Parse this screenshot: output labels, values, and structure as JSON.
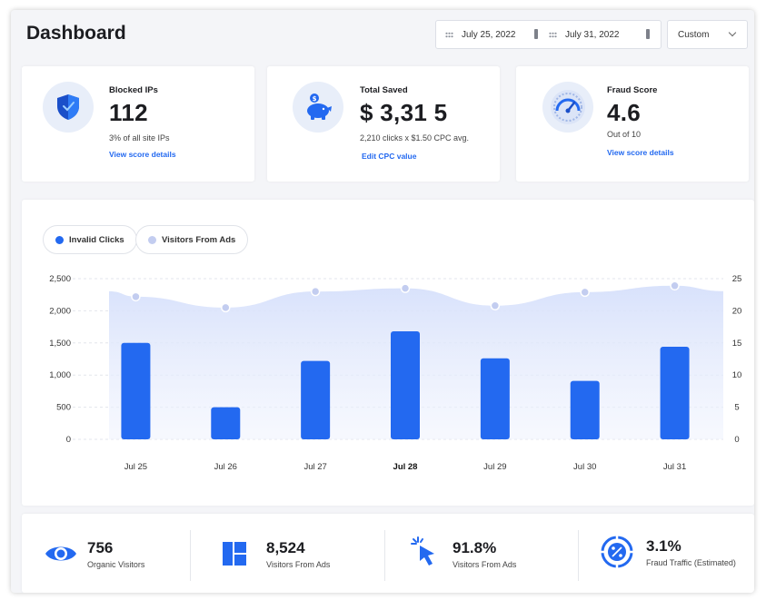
{
  "header": {
    "title": "Dashboard",
    "date_start": "July 25, 2022",
    "date_end": "July 31, 2022",
    "range_select": "Custom"
  },
  "stats": [
    {
      "label": "Blocked IPs",
      "value": "112",
      "sub": "3% of all site IPs",
      "link": "View score details",
      "icon": "shield-icon"
    },
    {
      "label": "Total Saved",
      "value": "$ 3,31 5",
      "sub": "2,210 clicks x $1.50 CPC avg.",
      "link": "Edit CPC value",
      "icon": "piggy-bank-icon"
    },
    {
      "label": "Fraud Score",
      "value": "4.6",
      "sub": "Out of 10",
      "link": "View score details",
      "icon": "gauge-icon"
    }
  ],
  "legend": [
    {
      "label": "Invalid Clicks",
      "color": "#2369f0"
    },
    {
      "label": "Visitors From Ads",
      "color": "#c3cdf0"
    }
  ],
  "chart_data": {
    "type": "bar",
    "categories": [
      "Jul 25",
      "Jul 26",
      "Jul 27",
      "Jul 28",
      "Jul 29",
      "Jul 30",
      "Jul 31"
    ],
    "highlighted_category": "Jul 28",
    "series": [
      {
        "name": "Invalid Clicks",
        "type": "bar",
        "axis": "left",
        "color": "#2369f0",
        "values": [
          1500,
          500,
          1220,
          1680,
          1260,
          910,
          1440
        ]
      },
      {
        "name": "Visitors From Ads",
        "type": "area",
        "axis": "right",
        "color": "#c3cdf0",
        "values": [
          22.2,
          20.5,
          23.0,
          23.5,
          20.8,
          22.9,
          23.9
        ]
      }
    ],
    "y_left": {
      "ticks": [
        "2,500",
        "2,000",
        "1,500",
        "1,000",
        "500",
        "0"
      ],
      "ylim": [
        0,
        2500
      ]
    },
    "y_right": {
      "ticks": [
        "25",
        "20",
        "15",
        "10",
        "5",
        "0"
      ],
      "ylim": [
        0,
        25
      ]
    },
    "grid": true
  },
  "kpis": [
    {
      "value": "756",
      "label": "Organic Visitors",
      "icon": "eye-icon"
    },
    {
      "value": "8,524",
      "label": "Visitors From Ads",
      "icon": "layout-grid-icon"
    },
    {
      "value": "91.8%",
      "label": "Visitors From Ads",
      "icon": "cursor-click-icon"
    },
    {
      "value": "3.1%",
      "label": "Fraud Traffic (Estimated)",
      "icon": "target-percent-icon"
    }
  ],
  "colors": {
    "accent": "#2369f0",
    "area": "#c3cdf0",
    "text": "#1c1d21"
  }
}
